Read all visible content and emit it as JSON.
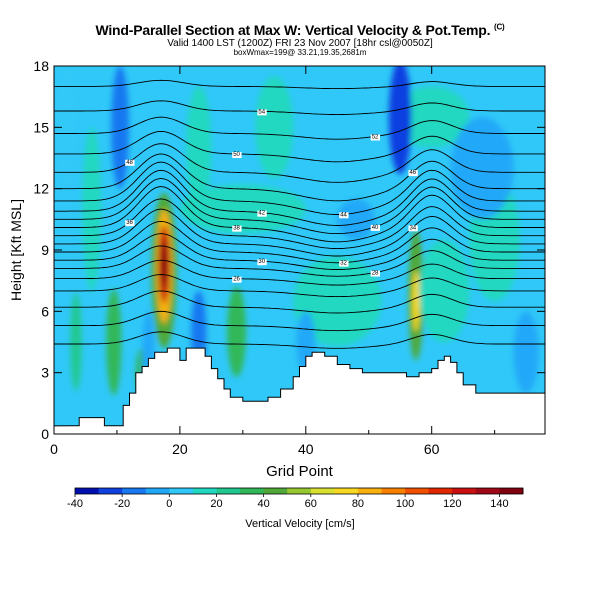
{
  "title": {
    "main": "Wind-Parallel Section at Max W: Vertical Velocity & Pot.Temp.",
    "main_mark": "(C)",
    "valid": "Valid 1400 LST (1200Z) FRI 23 Nov 2007 [18hr csl@0050Z]",
    "boxmax": "boxWmax=199@ 33.21,19.35,2681m"
  },
  "chart_data": {
    "type": "heatmap",
    "xlabel": "Grid Point",
    "ylabel": "Height [Kft MSL]",
    "xlim": [
      0,
      78
    ],
    "ylim": [
      0,
      18
    ],
    "xticks": [
      "0",
      "20",
      "40",
      "60"
    ],
    "yticks": [
      "0",
      "3",
      "6",
      "9",
      "12",
      "15",
      "18"
    ],
    "colorbar": {
      "label": "Vertical Velocity [cm/s]",
      "min": -40,
      "max": 150,
      "step": 10,
      "ticks": [
        "-40",
        "-20",
        "0",
        "20",
        "40",
        "60",
        "80",
        "100",
        "120",
        "140"
      ],
      "colors": [
        "#0010b0",
        "#1040e0",
        "#1878f0",
        "#20a8f8",
        "#30c8f8",
        "#20d8c0",
        "#20c890",
        "#30b858",
        "#50a838",
        "#98c830",
        "#d8e030",
        "#f8d820",
        "#f8b010",
        "#f88000",
        "#f05000",
        "#e02800",
        "#c81010",
        "#a00818",
        "#800010"
      ]
    },
    "terrain": [
      [
        0,
        0.4
      ],
      [
        3,
        0.4
      ],
      [
        4,
        0.8
      ],
      [
        7,
        0.8
      ],
      [
        8,
        0.4
      ],
      [
        10,
        0.4
      ],
      [
        11,
        1.4
      ],
      [
        12,
        2.0
      ],
      [
        13,
        3.0
      ],
      [
        14,
        3.3
      ],
      [
        15,
        3.7
      ],
      [
        16,
        4.0
      ],
      [
        18,
        4.2
      ],
      [
        20,
        3.6
      ],
      [
        21,
        4.2
      ],
      [
        23,
        4.2
      ],
      [
        24,
        3.8
      ],
      [
        25,
        3.2
      ],
      [
        26,
        2.7
      ],
      [
        27,
        2.2
      ],
      [
        28,
        1.8
      ],
      [
        30,
        1.6
      ],
      [
        33,
        1.6
      ],
      [
        34,
        1.8
      ],
      [
        36,
        2.2
      ],
      [
        38,
        2.8
      ],
      [
        39,
        3.3
      ],
      [
        40,
        3.8
      ],
      [
        41,
        4.0
      ],
      [
        43,
        3.8
      ],
      [
        45,
        3.4
      ],
      [
        47,
        3.2
      ],
      [
        49,
        3.0
      ],
      [
        53,
        3.0
      ],
      [
        55,
        3.0
      ],
      [
        56,
        2.8
      ],
      [
        58,
        3.0
      ],
      [
        60,
        3.2
      ],
      [
        61,
        3.6
      ],
      [
        62,
        3.8
      ],
      [
        63,
        3.5
      ],
      [
        64,
        3.0
      ],
      [
        65,
        2.4
      ],
      [
        67,
        2.0
      ],
      [
        69,
        2.0
      ],
      [
        72,
        2.0
      ],
      [
        76,
        2.0
      ],
      [
        78,
        1.8
      ]
    ],
    "theta_levels": [
      {
        "base": 4.4,
        "hill": 0.6,
        "label": ""
      },
      {
        "base": 5.3,
        "hill": 0.7,
        "label": ""
      },
      {
        "base": 6.2,
        "hill": 0.8,
        "label": ""
      },
      {
        "base": 7.0,
        "hill": 0.8,
        "label": ""
      },
      {
        "base": 7.6,
        "hill": 0.9,
        "label": "26"
      },
      {
        "base": 8.1,
        "hill": 1.1,
        "label": "28"
      },
      {
        "base": 8.5,
        "hill": 1.3,
        "label": "30"
      },
      {
        "base": 8.9,
        "hill": 1.5,
        "label": "32"
      },
      {
        "base": 9.3,
        "hill": 1.7,
        "label": "34"
      },
      {
        "base": 9.7,
        "hill": 1.8,
        "label": "36"
      },
      {
        "base": 10.1,
        "hill": 2.0,
        "label": "38"
      },
      {
        "base": 10.5,
        "hill": 2.0,
        "label": "40"
      },
      {
        "base": 10.9,
        "hill": 2.0,
        "label": "42"
      },
      {
        "base": 11.4,
        "hill": 1.9,
        "label": "44"
      },
      {
        "base": 12.0,
        "hill": 1.7,
        "label": "46"
      },
      {
        "base": 12.8,
        "hill": 1.4,
        "label": "48"
      },
      {
        "base": 13.7,
        "hill": 1.1,
        "label": "50"
      },
      {
        "base": 14.7,
        "hill": 0.8,
        "label": "52"
      },
      {
        "base": 15.8,
        "hill": 0.5,
        "label": "54"
      },
      {
        "base": 17.0,
        "hill": 0.3,
        "label": ""
      }
    ],
    "blobs": [
      {
        "x": 17.5,
        "y": 8.0,
        "rx": 2.0,
        "ry": 3.8,
        "v": 40
      },
      {
        "x": 17.5,
        "y": 8.2,
        "rx": 1.3,
        "ry": 2.8,
        "v": 80
      },
      {
        "x": 17.5,
        "y": 8.3,
        "rx": 0.9,
        "ry": 1.9,
        "v": 120
      },
      {
        "x": 17.5,
        "y": 8.3,
        "rx": 0.5,
        "ry": 1.2,
        "v": 145
      },
      {
        "x": 57.5,
        "y": 6.8,
        "rx": 1.2,
        "ry": 3.2,
        "v": 40
      },
      {
        "x": 57.5,
        "y": 6.5,
        "rx": 0.6,
        "ry": 1.5,
        "v": 70
      },
      {
        "x": 9.5,
        "y": 4.5,
        "rx": 1.2,
        "ry": 2.6,
        "v": 30
      },
      {
        "x": 29.0,
        "y": 5.0,
        "rx": 1.5,
        "ry": 2.2,
        "v": 30
      },
      {
        "x": 3.5,
        "y": 4.5,
        "rx": 0.9,
        "ry": 2.4,
        "v": 25
      },
      {
        "x": 62.0,
        "y": 7.0,
        "rx": 4.0,
        "ry": 2.5,
        "v": 15
      },
      {
        "x": 45.0,
        "y": 6.5,
        "rx": 7.0,
        "ry": 2.2,
        "v": 12
      },
      {
        "x": 30.0,
        "y": 11.0,
        "rx": 10.0,
        "ry": 1.2,
        "v": 10
      },
      {
        "x": 35.0,
        "y": 15.0,
        "rx": 3.0,
        "ry": 2.5,
        "v": 12
      },
      {
        "x": 60.0,
        "y": 15.5,
        "rx": 6.0,
        "ry": 1.5,
        "v": 10
      },
      {
        "x": 70.0,
        "y": 9.5,
        "rx": 4.0,
        "ry": 3.0,
        "v": 10
      },
      {
        "x": 14.0,
        "y": 3.0,
        "rx": 1.0,
        "ry": 1.2,
        "v": 30
      },
      {
        "x": 23.0,
        "y": 14.0,
        "rx": 2.0,
        "ry": 3.0,
        "v": 12
      },
      {
        "x": 6.0,
        "y": 11.0,
        "rx": 1.5,
        "ry": 4.0,
        "v": 12
      },
      {
        "x": 55.0,
        "y": 15.5,
        "rx": 1.8,
        "ry": 2.8,
        "v": -25
      },
      {
        "x": 23.0,
        "y": 5.0,
        "rx": 1.2,
        "ry": 2.0,
        "v": -20
      },
      {
        "x": 15.0,
        "y": 4.0,
        "rx": 1.0,
        "ry": 2.0,
        "v": -10
      },
      {
        "x": 10.5,
        "y": 15.0,
        "rx": 1.4,
        "ry": 3.0,
        "v": -20
      },
      {
        "x": 40.0,
        "y": 4.5,
        "rx": 1.5,
        "ry": 1.5,
        "v": -10
      },
      {
        "x": 48.0,
        "y": 10.5,
        "rx": 3.0,
        "ry": 1.0,
        "v": -10
      },
      {
        "x": 68.0,
        "y": 13.0,
        "rx": 5.0,
        "ry": 2.5,
        "v": -5
      },
      {
        "x": 2.0,
        "y": 15.0,
        "rx": 2.0,
        "ry": 3.0,
        "v": 5
      },
      {
        "x": 75.0,
        "y": 4.0,
        "rx": 2.0,
        "ry": 2.0,
        "v": -5
      }
    ]
  }
}
